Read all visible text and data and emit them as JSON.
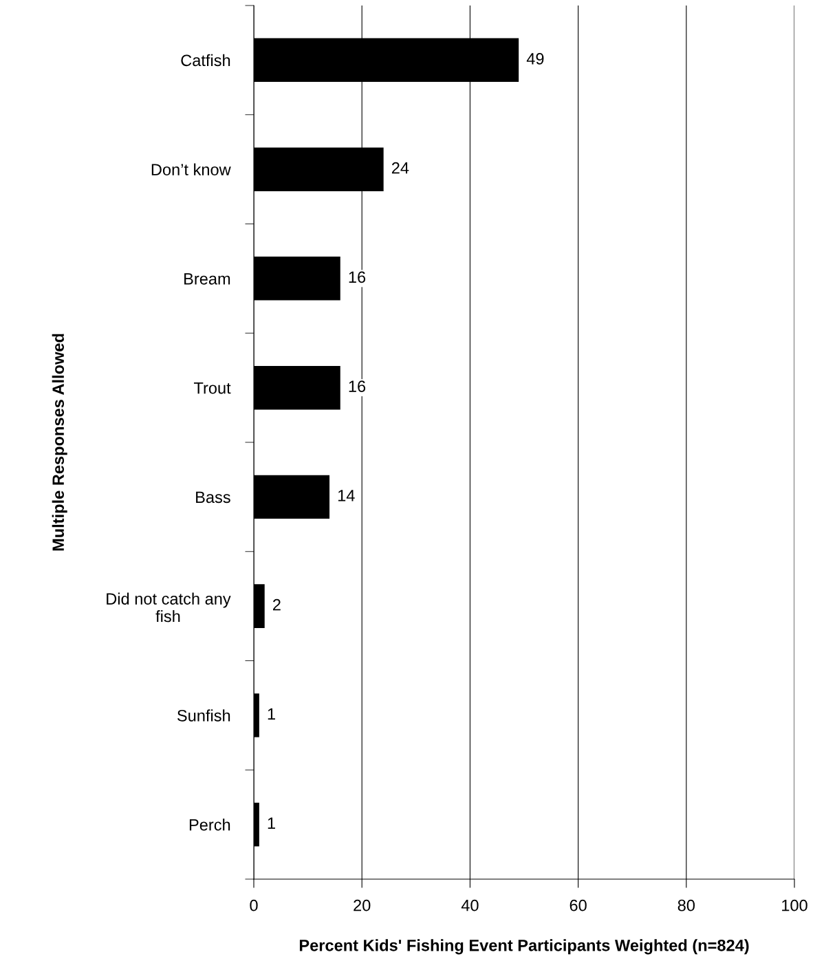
{
  "chart_data": {
    "type": "bar",
    "orientation": "horizontal",
    "categories": [
      "Catfish",
      "Don’t know",
      "Bream",
      "Trout",
      "Bass",
      "Did not catch any\nfish",
      "Sunfish",
      "Perch"
    ],
    "values": [
      49,
      24,
      16,
      16,
      14,
      2,
      1,
      1
    ],
    "color": "#000000",
    "data_labels": true,
    "xlim": [
      0,
      100
    ],
    "xticks": [
      0,
      20,
      40,
      60,
      80,
      100
    ],
    "grid": "x",
    "xlabel": "Percent Kids' Fishing Event Participants Weighted (n=824)",
    "ylabel": "Multiple Responses Allowed"
  }
}
